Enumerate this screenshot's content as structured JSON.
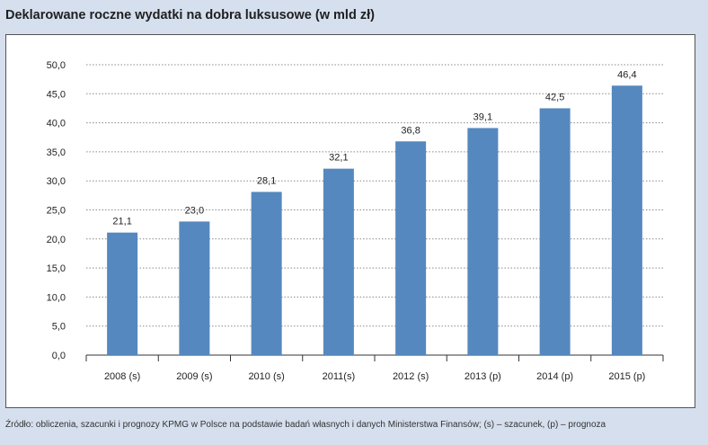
{
  "title": "Deklarowane roczne wydatki na dobra luksusowe (w mld zł)",
  "source": "Źródło: obliczenia, szacunki i prognozy KPMG w Polsce na podstawie badań własnych i danych Ministerstwa Finansów; (s) – szacunek, (p) – prognoza",
  "colors": {
    "bar": "#5588be",
    "background": "#d5dfee",
    "plot": "#ffffff"
  },
  "chart_data": {
    "type": "bar",
    "title": "Deklarowane roczne wydatki na dobra luksusowe (w mld zł)",
    "categories": [
      "2008 (s)",
      "2009 (s)",
      "2010 (s)",
      "2011(s)",
      "2012 (s)",
      "2013 (p)",
      "2014 (p)",
      "2015 (p)"
    ],
    "values": [
      21.1,
      23.0,
      28.1,
      32.1,
      36.8,
      39.1,
      42.5,
      46.4
    ],
    "value_labels": [
      "21,1",
      "23,0",
      "28,1",
      "32,1",
      "36,8",
      "39,1",
      "42,5",
      "46,4"
    ],
    "y_ticks": [
      "0,0",
      "5,0",
      "10,0",
      "15,0",
      "20,0",
      "25,0",
      "30,0",
      "35,0",
      "40,0",
      "45,0",
      "50,0"
    ],
    "ylim": [
      0,
      50
    ],
    "grid": true,
    "legend": "none"
  }
}
